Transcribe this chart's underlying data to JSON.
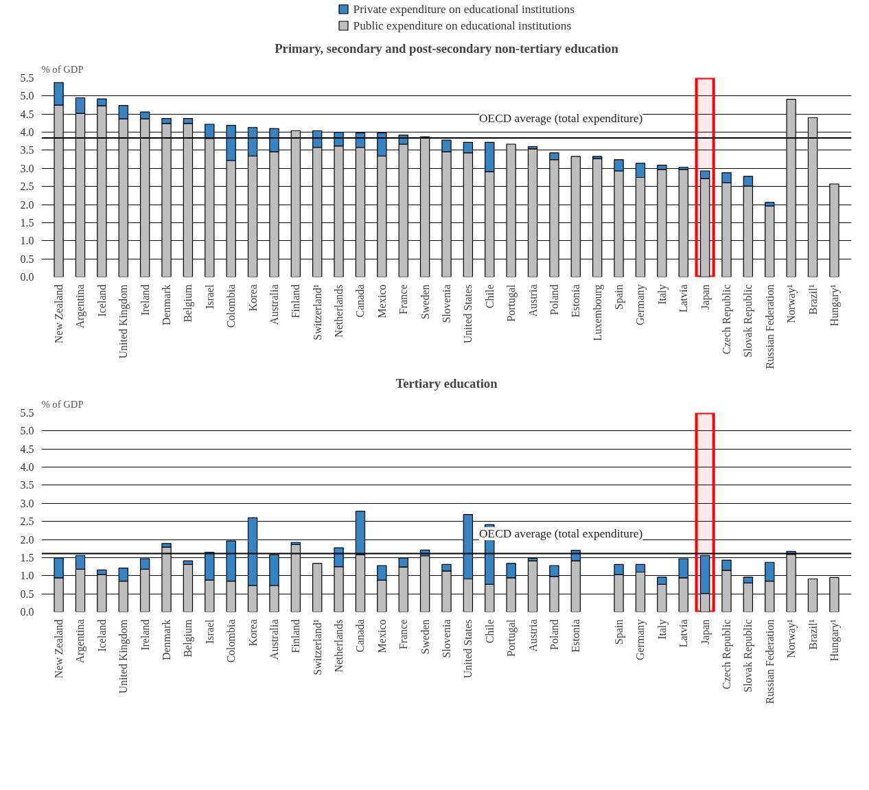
{
  "chart_data": [
    {
      "type": "bar",
      "stacked": true,
      "title": "Primary, secondary and post-secondary non-tertiary education",
      "ylabel": "% of GDP",
      "categories": [
        "New Zealand",
        "Argentina",
        "Iceland",
        "United Kingdom",
        "Ireland",
        "Denmark",
        "Belgium",
        "Israel",
        "Colombia",
        "Korea",
        "Australia",
        "Finland",
        "Switzerland¹",
        "Netherlands",
        "Canada",
        "Mexico",
        "France",
        "Sweden",
        "Slovenia",
        "United States",
        "Chile",
        "Portugal",
        "Austria",
        "Poland",
        "Estonia",
        "Luxembourg",
        "Spain",
        "Germany",
        "Italy",
        "Latvia",
        "Japan",
        "Czech Republic",
        "Slovak Republic",
        "Russian Federation",
        "Norway¹",
        "Brazil¹",
        "Hungary¹"
      ],
      "series": [
        {
          "name": "Public expenditure on educational institutions",
          "color": "#bebebe",
          "values": [
            4.75,
            4.52,
            4.73,
            4.37,
            4.37,
            4.24,
            4.24,
            3.83,
            3.22,
            3.34,
            3.46,
            4.04,
            3.58,
            3.62,
            3.58,
            3.34,
            3.67,
            3.87,
            3.46,
            3.43,
            2.91,
            3.67,
            3.54,
            3.24,
            3.33,
            3.27,
            2.93,
            2.75,
            2.97,
            2.97,
            2.72,
            2.6,
            2.51,
            1.96,
            4.91,
            4.4,
            2.57
          ]
        },
        {
          "name": "Private expenditure on educational institutions",
          "color": "#3585c5",
          "values": [
            0.62,
            0.43,
            0.19,
            0.37,
            0.19,
            0.14,
            0.14,
            0.39,
            0.97,
            0.79,
            0.64,
            0.0,
            0.46,
            0.38,
            0.4,
            0.64,
            0.25,
            0.0,
            0.32,
            0.29,
            0.81,
            0.0,
            0.06,
            0.19,
            0.0,
            0.06,
            0.31,
            0.39,
            0.12,
            0.06,
            0.21,
            0.28,
            0.27,
            0.1,
            0.0,
            0.0,
            0.0
          ]
        }
      ],
      "ylim": [
        0,
        5.5
      ],
      "yticks": [
        {
          "value": 0,
          "label": "0.0"
        },
        {
          "value": 0.5,
          "label": "0.5"
        },
        {
          "value": 1,
          "label": "1.0"
        },
        {
          "value": 1.5,
          "label": "1.5"
        },
        {
          "value": 2,
          "label": "2.0"
        },
        {
          "value": 2.5,
          "label": "2.5"
        },
        {
          "value": 3,
          "label": "3.0"
        },
        {
          "value": 3.5,
          "label": "3.5"
        },
        {
          "value": 4,
          "label": "4.0"
        },
        {
          "value": 4.5,
          "label": "4.5"
        },
        {
          "value": 5,
          "label": "5.0"
        },
        {
          "value": 5.5,
          "label": "5.5"
        }
      ],
      "grid": "y",
      "legend": "top",
      "ref_lines": [
        {
          "axis": "y",
          "value": 3.84,
          "label": "OECD average (total expenditure)",
          "color": "#000000"
        }
      ],
      "bands": [
        {
          "axis": "x",
          "from": "Japan",
          "to": "Japan",
          "color": "#ff0000"
        }
      ]
    },
    {
      "type": "bar",
      "stacked": true,
      "title": "Tertiary education",
      "ylabel": "% of GDP",
      "categories": [
        "New Zealand",
        "Argentina",
        "Iceland",
        "United Kingdom",
        "Ireland",
        "Denmark",
        "Belgium",
        "Israel",
        "Colombia",
        "Korea",
        "Australia",
        "Finland",
        "Switzerland¹",
        "Netherlands",
        "Canada",
        "Mexico",
        "France",
        "Sweden",
        "Slovenia",
        "United States",
        "Chile",
        "Portugal",
        "Austria",
        "Poland",
        "Estonia",
        null,
        "Spain",
        "Germany",
        "Italy",
        "Latvia",
        "Japan",
        "Czech Republic",
        "Slovak Republic",
        "Russian Federation",
        "Norway¹",
        "Brazil¹",
        "Hungary¹"
      ],
      "series": [
        {
          "color": "#bebebe",
          "values": [
            0.94,
            1.18,
            1.03,
            0.85,
            1.18,
            1.79,
            1.31,
            0.88,
            0.85,
            0.73,
            0.73,
            1.86,
            1.34,
            1.25,
            1.58,
            0.88,
            1.24,
            1.55,
            1.13,
            0.91,
            0.76,
            0.94,
            1.41,
            0.98,
            1.41,
            null,
            1.03,
            1.1,
            0.76,
            0.94,
            0.51,
            1.15,
            0.8,
            0.85,
            1.59,
            0.91,
            0.95
          ]
        },
        {
          "color": "#3585c5",
          "values": [
            0.55,
            0.38,
            0.13,
            0.36,
            0.29,
            0.1,
            0.1,
            0.77,
            1.11,
            1.87,
            0.85,
            0.06,
            0.0,
            0.52,
            1.2,
            0.4,
            0.25,
            0.16,
            0.18,
            1.78,
            1.65,
            0.4,
            0.07,
            0.3,
            0.29,
            null,
            0.28,
            0.21,
            0.2,
            0.53,
            1.05,
            0.28,
            0.16,
            0.52,
            0.08,
            0.0,
            0.0
          ]
        }
      ],
      "ylim": [
        0,
        5.5
      ],
      "yticks": [
        {
          "value": 0,
          "label": "0.0"
        },
        {
          "value": 0.5,
          "label": "0.5"
        },
        {
          "value": 1,
          "label": "1.0"
        },
        {
          "value": 1.5,
          "label": "1.5"
        },
        {
          "value": 2,
          "label": "2.0"
        },
        {
          "value": 2.5,
          "label": "2.5"
        },
        {
          "value": 3,
          "label": "3.0"
        },
        {
          "value": 3.5,
          "label": "3.5"
        },
        {
          "value": 4,
          "label": "4.0"
        },
        {
          "value": 4.5,
          "label": "4.5"
        },
        {
          "value": 5,
          "label": "5.0"
        },
        {
          "value": 5.5,
          "label": "5.5"
        }
      ],
      "grid": "y",
      "ref_lines": [
        {
          "axis": "y",
          "value": 1.61,
          "label": "OECD average (total expenditure)",
          "color": "#000000"
        }
      ],
      "bands": [
        {
          "axis": "x",
          "from": "Japan",
          "to": "Japan",
          "color": "#ff0000"
        }
      ]
    }
  ]
}
